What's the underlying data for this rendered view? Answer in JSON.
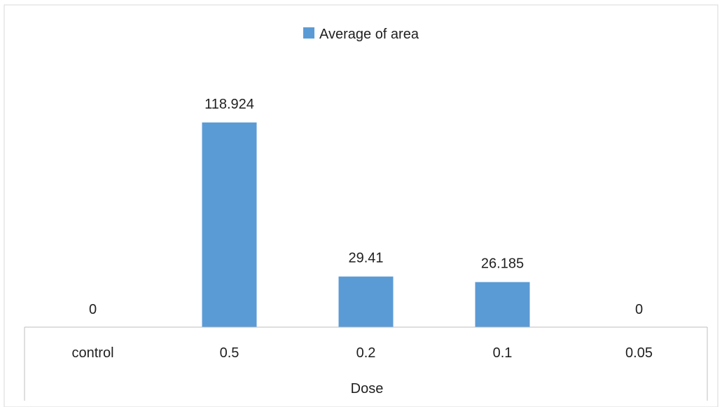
{
  "chart_data": {
    "type": "bar",
    "categories": [
      "control",
      "0.5",
      "0.2",
      "0.1",
      "0.05"
    ],
    "series": [
      {
        "name": "Average of area",
        "values": [
          0,
          118.924,
          29.41,
          26.185,
          0
        ],
        "data_labels": [
          "0",
          "118.924",
          "29.41",
          "26.185",
          "0"
        ],
        "color": "#5b9bd5"
      }
    ],
    "xlabel": "Dose",
    "ylabel": "",
    "ylim": [
      0,
      140
    ],
    "grid": false,
    "legend_position": "top"
  }
}
